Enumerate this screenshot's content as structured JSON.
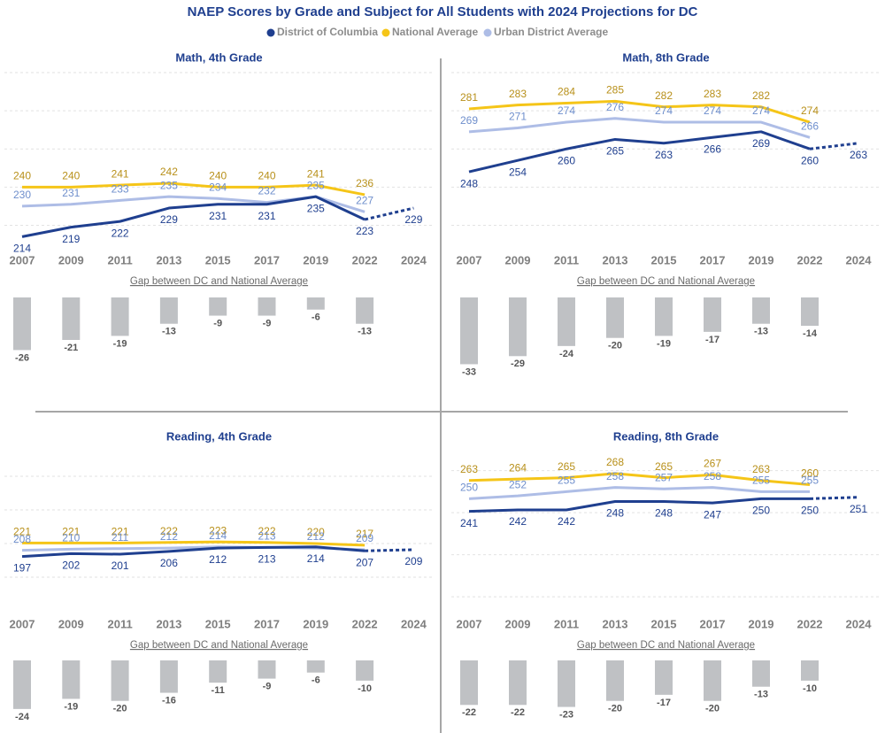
{
  "title": "NAEP Scores by Grade and Subject for All Students with 2024 Projections for DC",
  "chart_data": [
    {
      "type": "line",
      "title": "Math, 4th Grade",
      "categories": [
        "2007",
        "2009",
        "2011",
        "2013",
        "2015",
        "2017",
        "2019",
        "2022",
        "2024"
      ],
      "series": [
        {
          "name": "District of Columbia",
          "color": "#1f3f8f",
          "values": [
            214,
            219,
            222,
            229,
            231,
            231,
            235,
            223,
            229
          ]
        },
        {
          "name": "National Average",
          "color": "#f5c518",
          "values": [
            240,
            240,
            241,
            242,
            240,
            240,
            241,
            236,
            null
          ]
        },
        {
          "name": "Urban District Average",
          "color": "#aebde6",
          "values": [
            230,
            231,
            233,
            235,
            234,
            232,
            235,
            227,
            null
          ]
        }
      ],
      "ylim": [
        210,
        300
      ],
      "yticks": [
        220,
        240,
        260,
        280,
        300
      ],
      "grid": true
    },
    {
      "type": "bar",
      "title": "Gap between DC and National Average",
      "values": [
        -26,
        -21,
        -19,
        -13,
        -9,
        -9,
        -6,
        -13
      ],
      "color": "#bfc1c4",
      "ylim": [
        -35,
        0
      ]
    },
    {
      "type": "line",
      "title": "Math, 8th Grade",
      "categories": [
        "2007",
        "2009",
        "2011",
        "2013",
        "2015",
        "2017",
        "2019",
        "2022",
        "2024"
      ],
      "series": [
        {
          "color": "#1f3f8f",
          "values": [
            248,
            254,
            260,
            265,
            263,
            266,
            269,
            260,
            263
          ]
        },
        {
          "color": "#f5c518",
          "values": [
            281,
            283,
            284,
            285,
            282,
            283,
            282,
            274,
            null
          ]
        },
        {
          "color": "#aebde6",
          "values": [
            269,
            271,
            274,
            276,
            274,
            274,
            274,
            266,
            null
          ]
        }
      ],
      "ylim": [
        210,
        300
      ],
      "yticks": [
        220,
        240,
        260,
        280,
        300
      ],
      "grid": true
    },
    {
      "type": "bar",
      "title": "Gap between DC and National Average",
      "values": [
        -33,
        -29,
        -24,
        -20,
        -19,
        -17,
        -13,
        -14
      ],
      "color": "#bfc1c4",
      "ylim": [
        -35,
        0
      ]
    },
    {
      "type": "line",
      "title": "Reading, 4th Grade",
      "categories": [
        "2007",
        "2009",
        "2011",
        "2013",
        "2015",
        "2017",
        "2019",
        "2022",
        "2024"
      ],
      "series": [
        {
          "color": "#1f3f8f",
          "values": [
            197,
            202,
            201,
            206,
            212,
            213,
            214,
            207,
            209
          ]
        },
        {
          "color": "#f5c518",
          "values": [
            221,
            221,
            221,
            222,
            223,
            222,
            220,
            217,
            null
          ]
        },
        {
          "color": "#aebde6",
          "values": [
            208,
            210,
            211,
            212,
            214,
            213,
            212,
            209,
            null
          ]
        }
      ],
      "ylim": [
        100,
        400
      ],
      "yticks": [
        160,
        220,
        280,
        340
      ],
      "grid": true
    },
    {
      "type": "bar",
      "title": "Gap between DC and National Average",
      "values": [
        -24,
        -19,
        -20,
        -16,
        -11,
        -9,
        -6,
        -10
      ],
      "color": "#bfc1c4",
      "ylim": [
        -35,
        0
      ]
    },
    {
      "type": "line",
      "title": "Reading, 8th Grade",
      "categories": [
        "2007",
        "2009",
        "2011",
        "2013",
        "2015",
        "2017",
        "2019",
        "2022",
        "2024"
      ],
      "series": [
        {
          "color": "#1f3f8f",
          "values": [
            241,
            242,
            242,
            248,
            248,
            247,
            250,
            250,
            251
          ]
        },
        {
          "color": "#f5c518",
          "values": [
            263,
            264,
            265,
            268,
            265,
            267,
            263,
            260,
            null
          ]
        },
        {
          "color": "#aebde6",
          "values": [
            250,
            252,
            255,
            258,
            257,
            258,
            255,
            255,
            null
          ]
        }
      ],
      "ylim": [
        170,
        290
      ],
      "yticks": [
        180,
        210,
        240,
        270
      ],
      "grid": true
    },
    {
      "type": "bar",
      "title": "Gap between DC and National Average",
      "values": [
        -22,
        -22,
        -23,
        -20,
        -17,
        -20,
        -13,
        -10
      ],
      "color": "#bfc1c4",
      "ylim": [
        -35,
        0
      ]
    }
  ]
}
